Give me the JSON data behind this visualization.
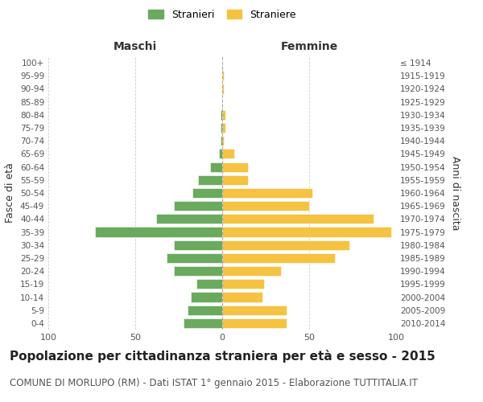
{
  "age_groups": [
    "0-4",
    "5-9",
    "10-14",
    "15-19",
    "20-24",
    "25-29",
    "30-34",
    "35-39",
    "40-44",
    "45-49",
    "50-54",
    "55-59",
    "60-64",
    "65-69",
    "70-74",
    "75-79",
    "80-84",
    "85-89",
    "90-94",
    "95-99",
    "100+"
  ],
  "birth_years": [
    "2010-2014",
    "2005-2009",
    "2000-2004",
    "1995-1999",
    "1990-1994",
    "1985-1989",
    "1980-1984",
    "1975-1979",
    "1970-1974",
    "1965-1969",
    "1960-1964",
    "1955-1959",
    "1950-1954",
    "1945-1949",
    "1940-1944",
    "1935-1939",
    "1930-1934",
    "1925-1929",
    "1920-1924",
    "1915-1919",
    "≤ 1914"
  ],
  "maschi": [
    22,
    20,
    18,
    15,
    28,
    32,
    28,
    73,
    38,
    28,
    17,
    14,
    7,
    2,
    1,
    1,
    1,
    0,
    0,
    0,
    0
  ],
  "femmine": [
    37,
    37,
    23,
    24,
    34,
    65,
    73,
    97,
    87,
    50,
    52,
    15,
    15,
    7,
    1,
    2,
    2,
    0,
    1,
    1,
    0
  ],
  "color_maschi": "#6aaa5e",
  "color_femmine": "#f5c242",
  "background_color": "#ffffff",
  "grid_color": "#cccccc",
  "title": "Popolazione per cittadinanza straniera per età e sesso - 2015",
  "subtitle": "COMUNE DI MORLUPO (RM) - Dati ISTAT 1° gennaio 2015 - Elaborazione TUTTITALIA.IT",
  "ylabel_left": "Fasce di età",
  "ylabel_right": "Anni di nascita",
  "legend_maschi": "Stranieri",
  "legend_femmine": "Straniere",
  "header_maschi": "Maschi",
  "header_femmine": "Femmine",
  "xlim": 100,
  "title_fontsize": 11,
  "subtitle_fontsize": 8.5
}
